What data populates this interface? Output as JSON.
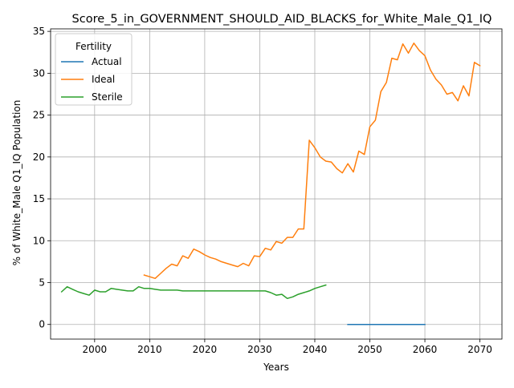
{
  "chart_data": {
    "type": "line",
    "title": "Score_5_in_GOVERNMENT_SHOULD_AID_BLACKS_for_White_Male_Q1_IQ",
    "xlabel": "Years",
    "ylabel": "% of White_Male Q1_IQ Population",
    "xlim": [
      1992,
      2074
    ],
    "ylim": [
      -1.75,
      35.3
    ],
    "x_ticks": [
      2000,
      2010,
      2020,
      2030,
      2040,
      2050,
      2060,
      2070
    ],
    "y_ticks": [
      0,
      5,
      10,
      15,
      20,
      25,
      30,
      35
    ],
    "grid": true,
    "legend": {
      "title": "Fertility",
      "placement": "top-left"
    },
    "series": [
      {
        "name": "Actual",
        "color": "#1f77b4",
        "points": [
          [
            2046,
            0
          ],
          [
            2048,
            0
          ],
          [
            2050,
            0
          ],
          [
            2052,
            0
          ],
          [
            2054,
            0
          ],
          [
            2056,
            0
          ],
          [
            2058,
            0
          ],
          [
            2060,
            0
          ]
        ]
      },
      {
        "name": "Ideal",
        "color": "#ff7f0e",
        "points": [
          [
            2009,
            5.9
          ],
          [
            2010,
            5.7
          ],
          [
            2011,
            5.5
          ],
          [
            2012,
            6.1
          ],
          [
            2013,
            6.7
          ],
          [
            2014,
            7.2
          ],
          [
            2015,
            7.0
          ],
          [
            2016,
            8.2
          ],
          [
            2017,
            7.9
          ],
          [
            2018,
            9.0
          ],
          [
            2019,
            8.7
          ],
          [
            2020,
            8.3
          ],
          [
            2021,
            8.0
          ],
          [
            2022,
            7.8
          ],
          [
            2023,
            7.5
          ],
          [
            2024,
            7.3
          ],
          [
            2025,
            7.1
          ],
          [
            2026,
            6.9
          ],
          [
            2027,
            7.3
          ],
          [
            2028,
            7.0
          ],
          [
            2029,
            8.2
          ],
          [
            2030,
            8.1
          ],
          [
            2031,
            9.1
          ],
          [
            2032,
            8.9
          ],
          [
            2033,
            9.9
          ],
          [
            2034,
            9.7
          ],
          [
            2035,
            10.4
          ],
          [
            2036,
            10.4
          ],
          [
            2037,
            11.4
          ],
          [
            2038,
            11.4
          ],
          [
            2039,
            22.0
          ],
          [
            2040,
            21.1
          ],
          [
            2041,
            20.0
          ],
          [
            2042,
            19.5
          ],
          [
            2043,
            19.4
          ],
          [
            2044,
            18.6
          ],
          [
            2045,
            18.1
          ],
          [
            2046,
            19.2
          ],
          [
            2047,
            18.2
          ],
          [
            2048,
            20.7
          ],
          [
            2049,
            20.3
          ],
          [
            2050,
            23.6
          ],
          [
            2051,
            24.4
          ],
          [
            2052,
            27.8
          ],
          [
            2053,
            28.9
          ],
          [
            2054,
            31.8
          ],
          [
            2055,
            31.6
          ],
          [
            2056,
            33.5
          ],
          [
            2057,
            32.4
          ],
          [
            2058,
            33.6
          ],
          [
            2059,
            32.7
          ],
          [
            2060,
            32.1
          ],
          [
            2061,
            30.4
          ],
          [
            2062,
            29.3
          ],
          [
            2063,
            28.6
          ],
          [
            2064,
            27.5
          ],
          [
            2065,
            27.7
          ],
          [
            2066,
            26.7
          ],
          [
            2067,
            28.5
          ],
          [
            2068,
            27.3
          ],
          [
            2069,
            31.3
          ],
          [
            2070,
            30.9
          ]
        ]
      },
      {
        "name": "Sterile",
        "color": "#2ca02c",
        "points": [
          [
            1994,
            3.9
          ],
          [
            1995,
            4.5
          ],
          [
            1996,
            4.2
          ],
          [
            1997,
            3.9
          ],
          [
            1998,
            3.7
          ],
          [
            1999,
            3.5
          ],
          [
            2000,
            4.1
          ],
          [
            2001,
            3.9
          ],
          [
            2002,
            3.9
          ],
          [
            2003,
            4.3
          ],
          [
            2004,
            4.2
          ],
          [
            2005,
            4.1
          ],
          [
            2006,
            4.0
          ],
          [
            2007,
            4.0
          ],
          [
            2008,
            4.5
          ],
          [
            2009,
            4.3
          ],
          [
            2010,
            4.3
          ],
          [
            2011,
            4.2
          ],
          [
            2012,
            4.1
          ],
          [
            2013,
            4.1
          ],
          [
            2014,
            4.1
          ],
          [
            2015,
            4.1
          ],
          [
            2016,
            4.0
          ],
          [
            2017,
            4.0
          ],
          [
            2018,
            4.0
          ],
          [
            2019,
            4.0
          ],
          [
            2020,
            4.0
          ],
          [
            2021,
            4.0
          ],
          [
            2022,
            4.0
          ],
          [
            2023,
            4.0
          ],
          [
            2024,
            4.0
          ],
          [
            2025,
            4.0
          ],
          [
            2026,
            4.0
          ],
          [
            2027,
            4.0
          ],
          [
            2028,
            4.0
          ],
          [
            2029,
            4.0
          ],
          [
            2030,
            4.0
          ],
          [
            2031,
            4.0
          ],
          [
            2032,
            3.8
          ],
          [
            2033,
            3.5
          ],
          [
            2034,
            3.6
          ],
          [
            2035,
            3.1
          ],
          [
            2036,
            3.3
          ],
          [
            2037,
            3.6
          ],
          [
            2038,
            3.8
          ],
          [
            2039,
            4.0
          ],
          [
            2040,
            4.3
          ],
          [
            2041,
            4.5
          ],
          [
            2042,
            4.7
          ]
        ]
      }
    ]
  }
}
